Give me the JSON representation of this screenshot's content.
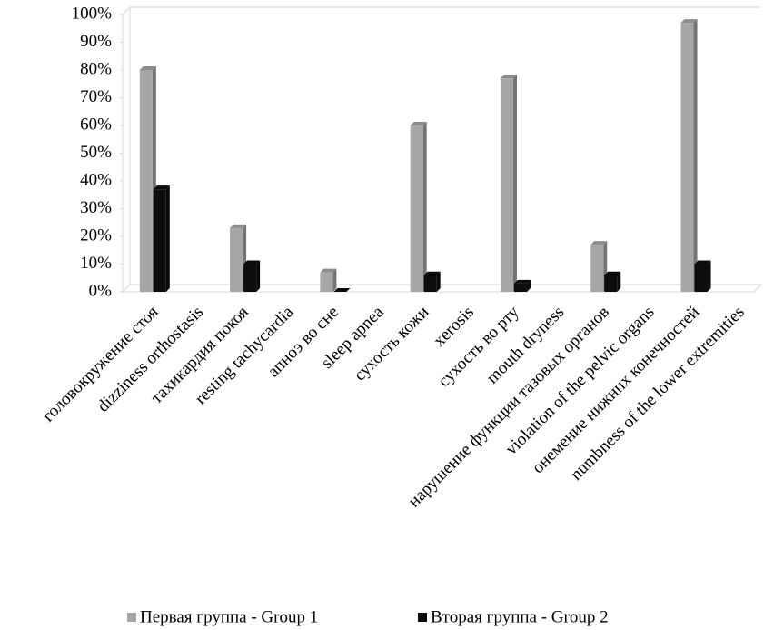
{
  "chart_data": {
    "type": "bar",
    "categories": [
      "головокружение стоя",
      "dizziness orthostasis",
      "тахикардия покоя",
      "resting tachycardia",
      "апноэ во сне",
      "sleep apnea",
      "сухость кожи",
      "xerosis",
      "сухость во рту",
      "mouth dryness",
      "нарушение функции тазовых органов",
      "violation of the pelvic organs",
      "онемение нижних конечностей",
      "numbness of the lower extremities"
    ],
    "series": [
      {
        "name": "Первая группа  - Group 1",
        "color": "#a6a6a6",
        "values": [
          80,
          null,
          23,
          null,
          7,
          null,
          60,
          null,
          77,
          null,
          17,
          null,
          97,
          null
        ]
      },
      {
        "name": "Вторая группа - Group 2",
        "color": "#0d0d0d",
        "values": [
          37,
          null,
          10,
          null,
          0,
          null,
          6,
          null,
          3,
          null,
          6,
          null,
          10,
          null
        ]
      }
    ],
    "ylim": [
      0,
      100
    ],
    "yticks": [
      {
        "value": 0,
        "label": "0%"
      },
      {
        "value": 10,
        "label": "10%"
      },
      {
        "value": 20,
        "label": "20%"
      },
      {
        "value": 30,
        "label": "30%"
      },
      {
        "value": 40,
        "label": "40%"
      },
      {
        "value": 50,
        "label": "50%"
      },
      {
        "value": 60,
        "label": "60%"
      },
      {
        "value": 70,
        "label": "70%"
      },
      {
        "value": 80,
        "label": "80%"
      },
      {
        "value": 90,
        "label": "90%"
      },
      {
        "value": 100,
        "label": "100%"
      }
    ],
    "legend": "bottom"
  }
}
